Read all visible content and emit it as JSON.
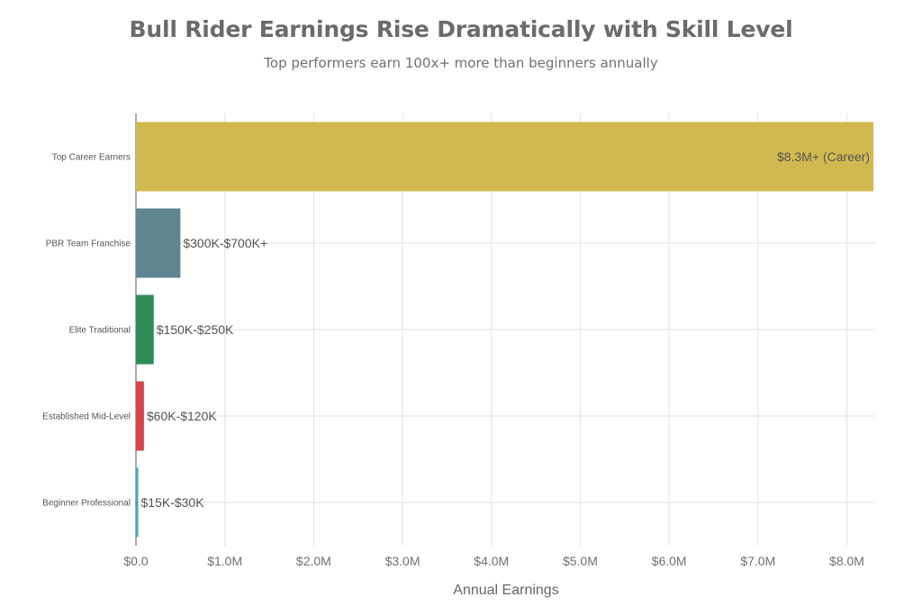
{
  "chart_data": {
    "type": "bar",
    "orientation": "horizontal",
    "title": "Bull Rider Earnings Rise Dramatically with Skill Level",
    "subtitle": "Top performers earn 100x+ more than beginners annually",
    "xlabel": "Annual Earnings",
    "ylabel": "",
    "xlim": [
      0,
      8700000
    ],
    "xticks": [
      0,
      1000000,
      2000000,
      3000000,
      4000000,
      5000000,
      6000000,
      7000000,
      8000000
    ],
    "xtick_labels": [
      "$0.0",
      "$1.0M",
      "$2.0M",
      "$3.0M",
      "$4.0M",
      "$5.0M",
      "$6.0M",
      "$7.0M",
      "$8.0M"
    ],
    "grid": true,
    "categories": [
      "Top Career Earners",
      "PBR Team Franchise",
      "Elite Traditional",
      "Established Mid-Level",
      "Beginner Professional"
    ],
    "values": [
      8300000,
      500000,
      200000,
      90000,
      22500
    ],
    "labels": [
      "$8.3M+ (Career)",
      "$300K-$700K+",
      "$150K-$250K",
      "$60K-$120K",
      "$15K-$30K"
    ],
    "colors": [
      "#d2b94f",
      "#5e8590",
      "#2e8b57",
      "#d9454a",
      "#3ba9c7"
    ]
  }
}
